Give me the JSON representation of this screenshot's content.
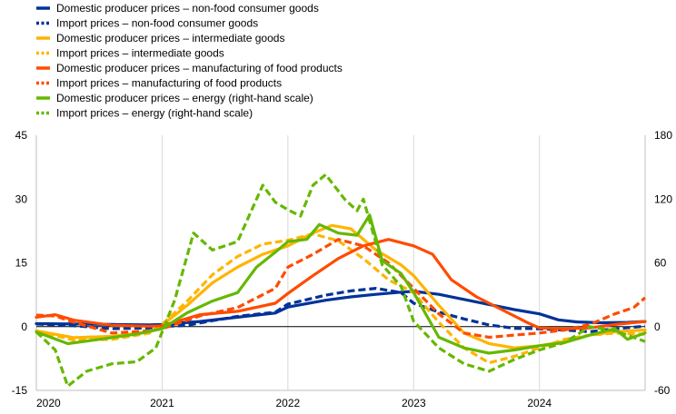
{
  "chart_data": {
    "type": "line",
    "x_axis": {
      "start": 2020.0,
      "end": 2024.84,
      "tick_labels": [
        "2020",
        "2021",
        "2022",
        "2023",
        "2024"
      ],
      "tick_values": [
        2020,
        2021,
        2022,
        2023,
        2024
      ]
    },
    "y_left": {
      "min": -15,
      "max": 45,
      "ticks": [
        -15,
        0,
        15,
        30,
        45
      ]
    },
    "y_right": {
      "min": -60,
      "max": 180,
      "ticks": [
        -60,
        0,
        60,
        120,
        180
      ]
    },
    "grid": "vertical",
    "legend_position": "top-left",
    "colors": {
      "dark_blue": "#003299",
      "yellow": "#ffb400",
      "orange": "#ff4b00",
      "green": "#65b800"
    },
    "series": [
      {
        "name": "Domestic producer prices – non-food consumer goods",
        "color": "#003299",
        "dashed": false,
        "axis": "left",
        "points": [
          [
            2020.0,
            0.7
          ],
          [
            2020.3,
            0.6
          ],
          [
            2020.6,
            0.5
          ],
          [
            2020.9,
            0.4
          ],
          [
            2021.0,
            0.5
          ],
          [
            2021.3,
            1.2
          ],
          [
            2021.6,
            2.2
          ],
          [
            2021.9,
            3.2
          ],
          [
            2022.0,
            4.6
          ],
          [
            2022.3,
            6.2
          ],
          [
            2022.5,
            7.0
          ],
          [
            2022.7,
            7.6
          ],
          [
            2022.9,
            8.1
          ],
          [
            2023.0,
            8.3
          ],
          [
            2023.2,
            7.6
          ],
          [
            2023.4,
            6.4
          ],
          [
            2023.6,
            5.2
          ],
          [
            2023.8,
            4.0
          ],
          [
            2024.0,
            3.0
          ],
          [
            2024.15,
            1.6
          ],
          [
            2024.3,
            1.1
          ],
          [
            2024.5,
            0.9
          ],
          [
            2024.7,
            1.0
          ],
          [
            2024.84,
            1.2
          ]
        ]
      },
      {
        "name": "Import prices – non-food consumer goods",
        "color": "#003299",
        "dashed": true,
        "axis": "left",
        "points": [
          [
            2020.0,
            0.6
          ],
          [
            2020.3,
            0.2
          ],
          [
            2020.6,
            -0.5
          ],
          [
            2020.9,
            -0.3
          ],
          [
            2021.0,
            0.0
          ],
          [
            2021.2,
            0.3
          ],
          [
            2021.4,
            1.4
          ],
          [
            2021.6,
            2.4
          ],
          [
            2021.9,
            3.4
          ],
          [
            2022.0,
            5.3
          ],
          [
            2022.3,
            7.4
          ],
          [
            2022.5,
            8.4
          ],
          [
            2022.7,
            9.0
          ],
          [
            2022.9,
            8.0
          ],
          [
            2023.0,
            5.5
          ],
          [
            2023.2,
            3.4
          ],
          [
            2023.4,
            1.8
          ],
          [
            2023.6,
            0.4
          ],
          [
            2023.8,
            -0.4
          ],
          [
            2024.0,
            -0.5
          ],
          [
            2024.2,
            -0.8
          ],
          [
            2024.4,
            -1.2
          ],
          [
            2024.6,
            -0.5
          ],
          [
            2024.84,
            0.1
          ]
        ]
      },
      {
        "name": "Domestic producer prices – intermediate goods",
        "color": "#ffb400",
        "dashed": false,
        "axis": "left",
        "points": [
          [
            2020.0,
            -1.0
          ],
          [
            2020.3,
            -2.6
          ],
          [
            2020.6,
            -2.3
          ],
          [
            2020.9,
            -1.2
          ],
          [
            2021.0,
            0.3
          ],
          [
            2021.2,
            5.0
          ],
          [
            2021.4,
            10.3
          ],
          [
            2021.6,
            14.0
          ],
          [
            2021.8,
            17.0
          ],
          [
            2022.0,
            19.0
          ],
          [
            2022.2,
            22.0
          ],
          [
            2022.35,
            23.8
          ],
          [
            2022.5,
            23.0
          ],
          [
            2022.7,
            18.0
          ],
          [
            2022.9,
            14.5
          ],
          [
            2023.0,
            12.0
          ],
          [
            2023.2,
            5.0
          ],
          [
            2023.4,
            -1.5
          ],
          [
            2023.6,
            -4.0
          ],
          [
            2023.8,
            -5.0
          ],
          [
            2024.0,
            -4.5
          ],
          [
            2024.2,
            -3.5
          ],
          [
            2024.4,
            -2.0
          ],
          [
            2024.6,
            -1.2
          ],
          [
            2024.84,
            -0.8
          ]
        ]
      },
      {
        "name": "Import prices – intermediate goods",
        "color": "#ffb400",
        "dashed": true,
        "axis": "left",
        "points": [
          [
            2020.0,
            -1.0
          ],
          [
            2020.3,
            -3.2
          ],
          [
            2020.6,
            -3.0
          ],
          [
            2020.9,
            -1.5
          ],
          [
            2021.0,
            0.5
          ],
          [
            2021.2,
            6.0
          ],
          [
            2021.4,
            12.2
          ],
          [
            2021.6,
            16.5
          ],
          [
            2021.8,
            19.4
          ],
          [
            2022.0,
            20.3
          ],
          [
            2022.2,
            21.8
          ],
          [
            2022.4,
            20.2
          ],
          [
            2022.6,
            16.0
          ],
          [
            2022.8,
            11.0
          ],
          [
            2023.0,
            8.0
          ],
          [
            2023.2,
            1.0
          ],
          [
            2023.4,
            -5.0
          ],
          [
            2023.6,
            -8.5
          ],
          [
            2023.8,
            -7.0
          ],
          [
            2024.0,
            -5.0
          ],
          [
            2024.2,
            -3.0
          ],
          [
            2024.4,
            -2.0
          ],
          [
            2024.6,
            -1.5
          ],
          [
            2024.84,
            -1.8
          ]
        ]
      },
      {
        "name": "Domestic producer prices – manufacturing of food products",
        "color": "#ff4b00",
        "dashed": false,
        "axis": "left",
        "points": [
          [
            2020.0,
            2.2
          ],
          [
            2020.15,
            2.8
          ],
          [
            2020.3,
            1.5
          ],
          [
            2020.6,
            0.3
          ],
          [
            2020.9,
            0.1
          ],
          [
            2021.0,
            0.2
          ],
          [
            2021.3,
            2.8
          ],
          [
            2021.6,
            3.6
          ],
          [
            2021.9,
            5.5
          ],
          [
            2022.0,
            7.8
          ],
          [
            2022.2,
            12.0
          ],
          [
            2022.4,
            16.0
          ],
          [
            2022.6,
            19.0
          ],
          [
            2022.8,
            20.5
          ],
          [
            2023.0,
            19.0
          ],
          [
            2023.15,
            17.0
          ],
          [
            2023.3,
            11.0
          ],
          [
            2023.5,
            7.0
          ],
          [
            2023.7,
            4.0
          ],
          [
            2023.9,
            1.0
          ],
          [
            2024.0,
            -0.3
          ],
          [
            2024.2,
            -0.5
          ],
          [
            2024.4,
            -0.3
          ],
          [
            2024.6,
            0.5
          ],
          [
            2024.84,
            1.2
          ]
        ]
      },
      {
        "name": "Import prices – manufacturing of food products",
        "color": "#ff4b00",
        "dashed": true,
        "axis": "left",
        "points": [
          [
            2020.0,
            2.7
          ],
          [
            2020.15,
            2.5
          ],
          [
            2020.3,
            1.0
          ],
          [
            2020.6,
            -1.5
          ],
          [
            2020.9,
            -1.0
          ],
          [
            2021.0,
            -0.5
          ],
          [
            2021.3,
            2.5
          ],
          [
            2021.6,
            4.5
          ],
          [
            2021.9,
            9.0
          ],
          [
            2022.0,
            14.0
          ],
          [
            2022.2,
            17.0
          ],
          [
            2022.4,
            20.5
          ],
          [
            2022.6,
            19.0
          ],
          [
            2022.8,
            15.0
          ],
          [
            2023.0,
            9.0
          ],
          [
            2023.2,
            3.0
          ],
          [
            2023.4,
            -1.5
          ],
          [
            2023.6,
            -2.5
          ],
          [
            2023.8,
            -2.0
          ],
          [
            2024.0,
            -1.5
          ],
          [
            2024.2,
            -0.8
          ],
          [
            2024.4,
            0.5
          ],
          [
            2024.6,
            3.0
          ],
          [
            2024.75,
            4.5
          ],
          [
            2024.84,
            6.8
          ]
        ]
      },
      {
        "name": "Domestic producer prices – energy (right-hand scale)",
        "color": "#65b800",
        "dashed": false,
        "axis": "right",
        "points": [
          [
            2020.0,
            -5
          ],
          [
            2020.25,
            -16
          ],
          [
            2020.5,
            -12
          ],
          [
            2020.8,
            -7
          ],
          [
            2021.0,
            -2
          ],
          [
            2021.2,
            13
          ],
          [
            2021.4,
            24
          ],
          [
            2021.6,
            32
          ],
          [
            2021.75,
            56
          ],
          [
            2021.9,
            70
          ],
          [
            2022.0,
            80
          ],
          [
            2022.15,
            82
          ],
          [
            2022.25,
            96
          ],
          [
            2022.4,
            88
          ],
          [
            2022.55,
            86
          ],
          [
            2022.65,
            105
          ],
          [
            2022.75,
            62
          ],
          [
            2022.9,
            50
          ],
          [
            2023.0,
            32
          ],
          [
            2023.2,
            -10
          ],
          [
            2023.4,
            -20
          ],
          [
            2023.6,
            -25
          ],
          [
            2023.8,
            -22
          ],
          [
            2024.0,
            -18
          ],
          [
            2024.2,
            -15
          ],
          [
            2024.4,
            -8
          ],
          [
            2024.6,
            -2
          ],
          [
            2024.7,
            -12
          ],
          [
            2024.84,
            -6
          ]
        ]
      },
      {
        "name": "Import prices – energy (right-hand scale)",
        "color": "#65b800",
        "dashed": true,
        "axis": "right",
        "points": [
          [
            2020.0,
            -5
          ],
          [
            2020.15,
            -22
          ],
          [
            2020.25,
            -56
          ],
          [
            2020.4,
            -42
          ],
          [
            2020.6,
            -35
          ],
          [
            2020.8,
            -33
          ],
          [
            2020.95,
            -20
          ],
          [
            2021.1,
            25
          ],
          [
            2021.25,
            88
          ],
          [
            2021.4,
            72
          ],
          [
            2021.6,
            80
          ],
          [
            2021.8,
            133
          ],
          [
            2021.9,
            117
          ],
          [
            2022.0,
            110
          ],
          [
            2022.1,
            104
          ],
          [
            2022.2,
            133
          ],
          [
            2022.3,
            143
          ],
          [
            2022.45,
            120
          ],
          [
            2022.55,
            109
          ],
          [
            2022.6,
            120
          ],
          [
            2022.75,
            58
          ],
          [
            2022.9,
            38
          ],
          [
            2023.0,
            5
          ],
          [
            2023.2,
            -20
          ],
          [
            2023.4,
            -35
          ],
          [
            2023.6,
            -42
          ],
          [
            2023.8,
            -31
          ],
          [
            2024.0,
            -22
          ],
          [
            2024.2,
            -15
          ],
          [
            2024.4,
            0
          ],
          [
            2024.6,
            -4
          ],
          [
            2024.84,
            -14
          ]
        ]
      }
    ]
  }
}
